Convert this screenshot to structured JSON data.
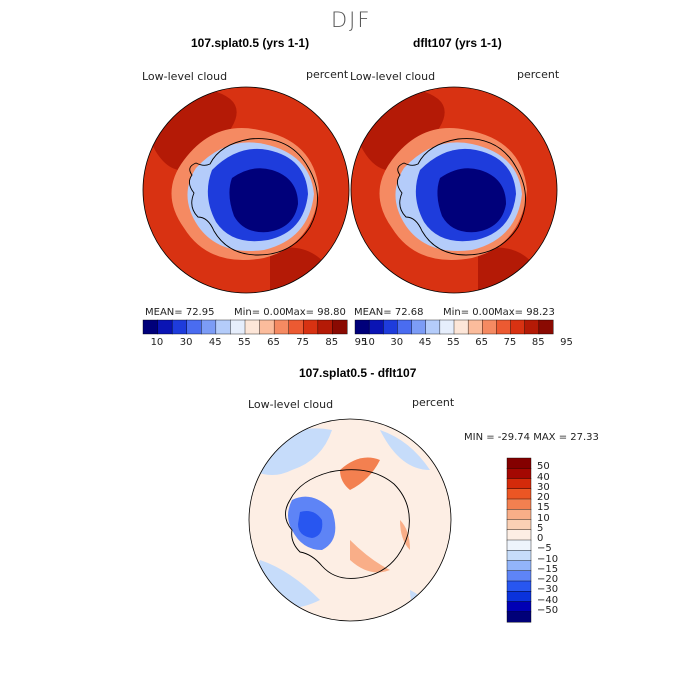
{
  "season": "DJF",
  "colors": {
    "abs_palette": [
      "#00007a",
      "#0a14b4",
      "#1e3cdc",
      "#4a6cf0",
      "#7c9cf6",
      "#b4ccfa",
      "#e6eefc",
      "#fde6d8",
      "#fbbc9c",
      "#f58a62",
      "#ec5a32",
      "#d83212",
      "#b41a06",
      "#8a0a02"
    ],
    "diff_palette": [
      "#000078",
      "#0000b4",
      "#0a32dc",
      "#2856f0",
      "#5e84f6",
      "#92b4fa",
      "#c6dcfa",
      "#eef4fc",
      "#fdeee4",
      "#fbd0b4",
      "#f9ae88",
      "#f38050",
      "#ec5624",
      "#d42a0a",
      "#a40802",
      "#840000"
    ],
    "land": "#000000"
  },
  "chart_data": [
    {
      "type": "heatmap",
      "projection": "south-polar-stereographic",
      "title": "107.splat0.5 (yrs 1-1)",
      "variable": "Low-level cloud",
      "units": "percent",
      "stats": {
        "mean": "MEAN=   72.95",
        "min": "Min=    0.00",
        "max": "Max=   98.80"
      },
      "colorbar": {
        "ticks": [
          "10",
          "30",
          "45",
          "55",
          "65",
          "75",
          "85",
          "95"
        ]
      },
      "pattern": "ocean high cloud fraction (~80-95%) surrounding the Antarctic continent, continental interior low (~5-15%)"
    },
    {
      "type": "heatmap",
      "projection": "south-polar-stereographic",
      "title": "dflt107 (yrs 1-1)",
      "variable": "Low-level cloud",
      "units": "percent",
      "stats": {
        "mean": "MEAN=   72.68",
        "min": "Min=    0.00",
        "max": "Max=   98.23"
      },
      "colorbar": {
        "ticks": [
          "10",
          "30",
          "45",
          "55",
          "65",
          "75",
          "85",
          "95"
        ]
      },
      "pattern": "nearly identical to the left panel"
    },
    {
      "type": "heatmap",
      "projection": "south-polar-stereographic",
      "title": "107.splat0.5 - dflt107",
      "variable": "Low-level cloud",
      "units": "percent",
      "stats": {
        "range": "MIN = -29.74  MAX =   27.33"
      },
      "colorbar": {
        "ticks": [
          "50",
          "40",
          "30",
          "20",
          "15",
          "10",
          "5",
          "0",
          "−5",
          "−10",
          "−15",
          "−20",
          "−30",
          "−40",
          "−50"
        ]
      },
      "pattern": "small differences (-5..5) over most of the domain, positive differences around West Antarctica coast, negative over the Antarctic Peninsula / Weddell region"
    }
  ]
}
